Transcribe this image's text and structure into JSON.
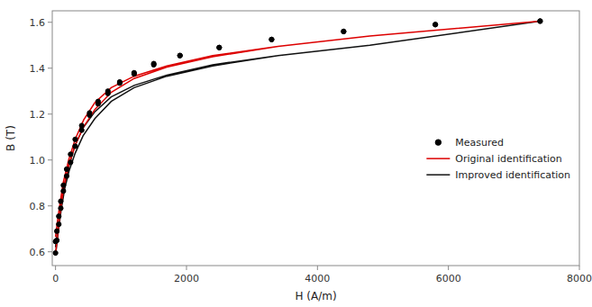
{
  "chart_data": {
    "type": "line",
    "xlabel": "H (A/m)",
    "ylabel": "B (T)",
    "xlim": [
      -50,
      8000
    ],
    "ylim": [
      0.54,
      1.65
    ],
    "xticks": [
      0,
      2000,
      4000,
      6000,
      8000
    ],
    "yticks": [
      0.6,
      0.8,
      {
        "value": 1.0,
        "label": "1.0"
      },
      1.2,
      1.4,
      1.6
    ],
    "grid": false,
    "legend": "right",
    "series": [
      {
        "name": "Measured",
        "type": "scatter",
        "marker": "circle",
        "color": "black",
        "x": [
          0,
          20,
          50,
          80,
          120,
          170,
          230,
          300,
          400,
          520,
          650,
          800,
          980,
          1200,
          1500,
          1900,
          2500,
          3300,
          4400,
          5800,
          7400,
          null,
          7400,
          5800,
          4400,
          3300,
          2500,
          1900,
          1500,
          1200,
          980,
          800,
          650,
          520,
          400,
          300,
          230,
          170,
          120,
          80,
          50,
          20,
          0
        ],
        "values": [
          0.595,
          0.65,
          0.72,
          0.79,
          0.865,
          0.93,
          0.99,
          1.06,
          1.13,
          1.195,
          1.245,
          1.29,
          1.335,
          1.375,
          1.415,
          1.455,
          1.49,
          1.525,
          1.56,
          1.59,
          1.605,
          null,
          1.605,
          1.59,
          1.56,
          1.525,
          1.49,
          1.455,
          1.42,
          1.38,
          1.34,
          1.3,
          1.255,
          1.205,
          1.15,
          1.09,
          1.025,
          0.96,
          0.89,
          0.82,
          0.755,
          0.69,
          0.645
        ]
      },
      {
        "name": "Original identification",
        "type": "line",
        "line_style": "solid",
        "color": "#dd0000",
        "x": [
          0,
          30,
          70,
          120,
          200,
          300,
          430,
          600,
          850,
          1200,
          1700,
          2400,
          3400,
          4800,
          7400,
          null,
          7400,
          4800,
          3400,
          2400,
          1700,
          1200,
          850,
          600,
          430,
          300,
          200,
          120,
          70,
          30,
          0
        ],
        "values": [
          0.59,
          0.67,
          0.765,
          0.87,
          0.975,
          1.065,
          1.145,
          1.22,
          1.295,
          1.355,
          1.405,
          1.45,
          1.495,
          1.54,
          1.605,
          null,
          1.605,
          1.54,
          1.495,
          1.455,
          1.41,
          1.365,
          1.315,
          1.25,
          1.175,
          1.09,
          1.0,
          0.905,
          0.815,
          0.735,
          0.665
        ]
      },
      {
        "name": "Improved identification",
        "type": "line",
        "line_style": "solid",
        "color": "#111111",
        "x": [
          0,
          20,
          50,
          90,
          140,
          210,
          300,
          420,
          600,
          850,
          1200,
          1700,
          2400,
          3400,
          4800,
          7400,
          null,
          7400,
          4800,
          3400,
          2400,
          1700,
          1200,
          850,
          600,
          420,
          300,
          210,
          140,
          90,
          50,
          20,
          0
        ],
        "values": [
          0.585,
          0.635,
          0.705,
          0.79,
          0.875,
          0.955,
          1.03,
          1.105,
          1.18,
          1.255,
          1.315,
          1.365,
          1.41,
          1.455,
          1.5,
          1.605,
          null,
          1.605,
          1.5,
          1.455,
          1.415,
          1.37,
          1.325,
          1.275,
          1.21,
          1.14,
          1.065,
          0.98,
          0.9,
          0.815,
          0.74,
          0.67,
          0.62
        ]
      }
    ]
  }
}
